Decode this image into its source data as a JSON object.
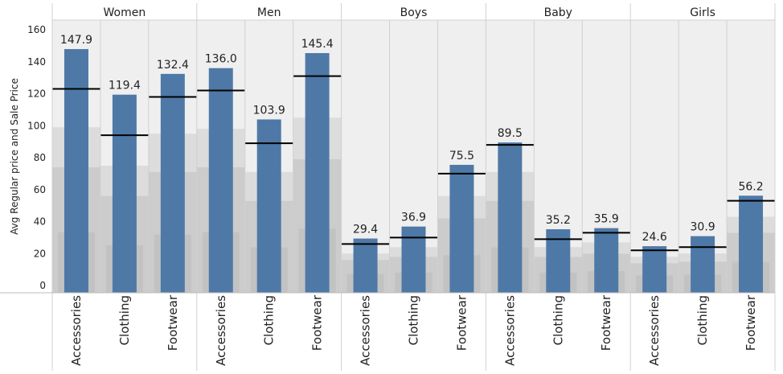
{
  "chart_data": {
    "type": "bar",
    "ylabel": "Avg Regular price and Sale Price",
    "ylim": [
      0,
      160
    ],
    "yticks": [
      0,
      20,
      40,
      60,
      80,
      100,
      120,
      140,
      160
    ],
    "grid": false,
    "colors": {
      "bar": "#4e79a7",
      "reference_line": "#000000",
      "band_light": "#dcdcdc",
      "band_mid": "#cccccc",
      "band_dark": "#c2c2c2",
      "pane_bg": "#efefef",
      "divider": "#d0d0d0",
      "header_text": "#222222"
    },
    "groups": [
      {
        "name": "Women",
        "categories": [
          "Accessories",
          "Clothing",
          "Footwear"
        ],
        "values": [
          147.9,
          119.4,
          132.4
        ],
        "reference": [
          123,
          94,
          118
        ],
        "band_low": [
          74,
          56,
          71
        ],
        "band_high": [
          99,
          75,
          95
        ]
      },
      {
        "name": "Men",
        "categories": [
          "Accessories",
          "Clothing",
          "Footwear"
        ],
        "values": [
          136.0,
          103.9,
          145.4
        ],
        "reference": [
          122,
          89,
          131
        ],
        "band_low": [
          74,
          53,
          79
        ],
        "band_high": [
          98,
          71,
          105
        ]
      },
      {
        "name": "Boys",
        "categories": [
          "Accessories",
          "Clothing",
          "Footwear"
        ],
        "values": [
          29.4,
          36.9,
          75.5
        ],
        "reference": [
          26,
          30,
          70
        ],
        "band_low": [
          16,
          18,
          42
        ],
        "band_high": [
          20,
          24,
          56
        ]
      },
      {
        "name": "Baby",
        "categories": [
          "Accessories",
          "Clothing",
          "Footwear"
        ],
        "values": [
          89.5,
          35.2,
          35.9
        ],
        "reference": [
          88,
          29,
          33
        ],
        "band_low": [
          53,
          18,
          20
        ],
        "band_high": [
          71,
          24,
          27
        ]
      },
      {
        "name": "Girls",
        "categories": [
          "Accessories",
          "Clothing",
          "Footwear"
        ],
        "values": [
          24.6,
          30.9,
          56.2
        ],
        "reference": [
          22,
          24,
          53
        ],
        "band_low": [
          14,
          15,
          33
        ],
        "band_high": [
          18,
          20,
          43
        ]
      }
    ]
  }
}
